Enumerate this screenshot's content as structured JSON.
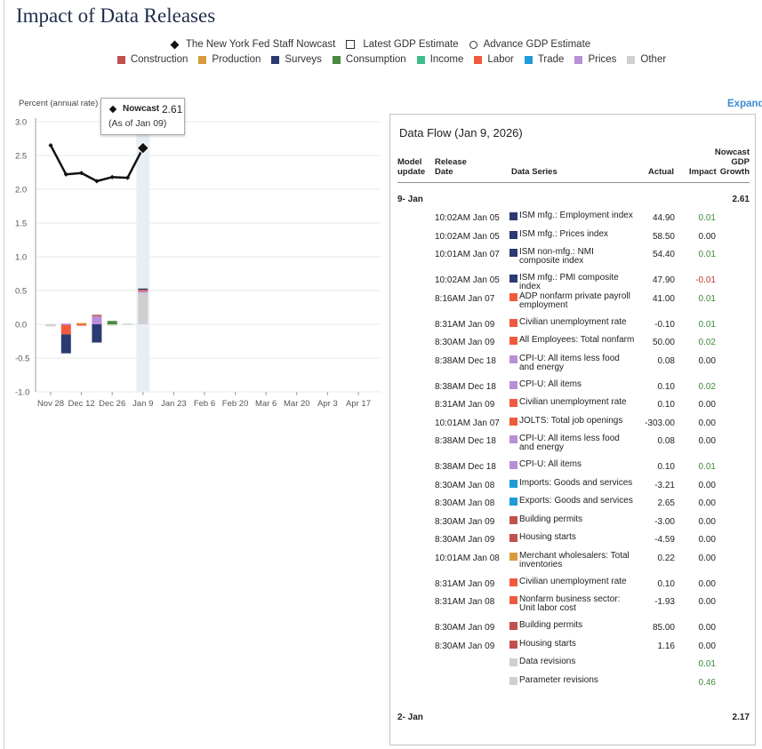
{
  "title": "Impact of Data Releases",
  "legend": {
    "markers": [
      {
        "name": "The New York Fed Staff Nowcast",
        "shape": "diamond"
      },
      {
        "name": "Latest GDP Estimate",
        "shape": "square"
      },
      {
        "name": "Advance GDP Estimate",
        "shape": "circle"
      }
    ],
    "categories": [
      {
        "name": "Construction",
        "color": "#c0504d"
      },
      {
        "name": "Production",
        "color": "#d99a3c"
      },
      {
        "name": "Surveys",
        "color": "#2b3a73"
      },
      {
        "name": "Consumption",
        "color": "#4a8a3e"
      },
      {
        "name": "Income",
        "color": "#3dbf8a"
      },
      {
        "name": "Labor",
        "color": "#f05a3c"
      },
      {
        "name": "Trade",
        "color": "#1f9bd7"
      },
      {
        "name": "Prices",
        "color": "#b88ed6"
      },
      {
        "name": "Other",
        "color": "#cfcfcf"
      }
    ]
  },
  "expand_label": "Expand",
  "tooltip": {
    "name": "Nowcast",
    "value": "2.61",
    "as_of": "(As of Jan 09)"
  },
  "chart_data": {
    "type": "line",
    "ylabel": "Percent (annual rate)",
    "ylim": [
      -1.0,
      3.0
    ],
    "yticks": [
      "3.0",
      "2.5",
      "2.0",
      "1.5",
      "1.0",
      "0.5",
      "0.0",
      "-0.5",
      "-1.0"
    ],
    "ytick_values": [
      3.0,
      2.5,
      2.0,
      1.5,
      1.0,
      0.5,
      0.0,
      -0.5,
      -1.0
    ],
    "xtick_labels": [
      "Nov 28",
      "Dec 12",
      "Dec 26",
      "Jan 9",
      "Jan 23",
      "Feb 6",
      "Feb 20",
      "Mar 6",
      "Mar 20",
      "Apr 3",
      "Apr 17"
    ],
    "grid": true,
    "highlighted_week": 6,
    "nowcast": {
      "name": "The New York Fed Staff Nowcast",
      "weeks": [
        0,
        1,
        2,
        3,
        4,
        5,
        6
      ],
      "values": [
        2.65,
        2.22,
        2.24,
        2.12,
        2.18,
        2.17,
        2.61
      ]
    },
    "impact_bars": [
      {
        "week": 0,
        "segments": [
          {
            "category": "Other",
            "value": -0.03
          }
        ]
      },
      {
        "week": 1,
        "segments": [
          {
            "category": "Labor",
            "value": -0.15
          },
          {
            "category": "Surveys",
            "value": -0.28
          },
          {
            "category": "Prices",
            "value": 0.01
          }
        ]
      },
      {
        "week": 2,
        "segments": [
          {
            "category": "Production",
            "value": 0.02
          },
          {
            "category": "Labor",
            "value": -0.02
          }
        ]
      },
      {
        "week": 3,
        "segments": [
          {
            "category": "Prices",
            "value": 0.12
          },
          {
            "category": "Construction",
            "value": 0.02
          },
          {
            "category": "Surveys",
            "value": -0.27
          }
        ]
      },
      {
        "week": 4,
        "segments": [
          {
            "category": "Consumption",
            "value": 0.05
          },
          {
            "category": "Other",
            "value": -0.02
          }
        ]
      },
      {
        "week": 5,
        "segments": [
          {
            "category": "Other",
            "value": 0.0
          }
        ]
      },
      {
        "week": 6,
        "segments": [
          {
            "category": "Other",
            "value": 0.47
          },
          {
            "category": "Prices",
            "value": 0.02
          },
          {
            "category": "Labor",
            "value": 0.02
          },
          {
            "category": "Surveys",
            "value": 0.02
          }
        ]
      }
    ]
  },
  "panel": {
    "title": "Data Flow (Jan 9, 2026)",
    "headers": {
      "model_update": [
        "Model",
        "update"
      ],
      "release_date": [
        "Release",
        "Date"
      ],
      "series": "Data Series",
      "actual": "Actual",
      "impact": "Impact",
      "nowcast": [
        "Nowcast",
        "GDP",
        "Growth"
      ]
    },
    "groups": [
      {
        "label": "9- Jan",
        "nowcast": "2.61"
      },
      {
        "label": "2- Jan",
        "nowcast": "2.17"
      }
    ],
    "rows": [
      {
        "date": "10:02AM Jan 05",
        "category": "Surveys",
        "series": "ISM mfg.: Employment index",
        "actual": "44.90",
        "impact": "0.01"
      },
      {
        "date": "10:02AM Jan 05",
        "category": "Surveys",
        "series": "ISM mfg.: Prices index",
        "actual": "58.50",
        "impact": "0.00"
      },
      {
        "date": "10:01AM Jan 07",
        "category": "Surveys",
        "series": "ISM non-mfg.: NMI composite index",
        "actual": "54.40",
        "impact": "0.01"
      },
      {
        "date": "10:02AM Jan 05",
        "category": "Surveys",
        "series": "ISM mfg.: PMI composite index",
        "actual": "47.90",
        "impact": "-0.01"
      },
      {
        "date": "8:16AM Jan 07",
        "category": "Labor",
        "series": "ADP nonfarm private payroll employment",
        "actual": "41.00",
        "impact": "0.01"
      },
      {
        "date": "8:31AM Jan 09",
        "category": "Labor",
        "series": "Civilian unemployment rate",
        "actual": "-0.10",
        "impact": "0.01"
      },
      {
        "date": "8:30AM Jan 09",
        "category": "Labor",
        "series": "All Employees: Total nonfarm",
        "actual": "50.00",
        "impact": "0.02"
      },
      {
        "date": "8:38AM Dec 18",
        "category": "Prices",
        "series": "CPI-U: All items less food and energy",
        "actual": "0.08",
        "impact": "0.00"
      },
      {
        "date": "8:38AM Dec 18",
        "category": "Prices",
        "series": "CPI-U: All items",
        "actual": "0.10",
        "impact": "0.02"
      },
      {
        "date": "8:31AM Jan 09",
        "category": "Labor",
        "series": "Civilian unemployment rate",
        "actual": "0.10",
        "impact": "0.00"
      },
      {
        "date": "10:01AM Jan 07",
        "category": "Labor",
        "series": "JOLTS: Total job openings",
        "actual": "-303.00",
        "impact": "0.00"
      },
      {
        "date": "8:38AM Dec 18",
        "category": "Prices",
        "series": "CPI-U: All items less food and energy",
        "actual": "0.08",
        "impact": "0.00"
      },
      {
        "date": "8:38AM Dec 18",
        "category": "Prices",
        "series": "CPI-U: All items",
        "actual": "0.10",
        "impact": "0.01"
      },
      {
        "date": "8:30AM Jan 08",
        "category": "Trade",
        "series": "Imports: Goods and services",
        "actual": "-3.21",
        "impact": "0.00"
      },
      {
        "date": "8:30AM Jan 08",
        "category": "Trade",
        "series": "Exports: Goods and services",
        "actual": "2.65",
        "impact": "0.00"
      },
      {
        "date": "8:30AM Jan 09",
        "category": "Construction",
        "series": "Building permits",
        "actual": "-3.00",
        "impact": "0.00"
      },
      {
        "date": "8:30AM Jan 09",
        "category": "Construction",
        "series": "Housing starts",
        "actual": "-4.59",
        "impact": "0.00"
      },
      {
        "date": "10:01AM Jan 08",
        "category": "Production",
        "series": "Merchant wholesalers: Total inventories",
        "actual": "0.22",
        "impact": "0.00"
      },
      {
        "date": "8:31AM Jan 09",
        "category": "Labor",
        "series": "Civilian unemployment rate",
        "actual": "0.10",
        "impact": "0.00"
      },
      {
        "date": "8:31AM Jan 08",
        "category": "Labor",
        "series": "Nonfarm business sector: Unit labor cost",
        "actual": "-1.93",
        "impact": "0.00"
      },
      {
        "date": "8:30AM Jan 09",
        "category": "Construction",
        "series": "Building permits",
        "actual": "85.00",
        "impact": "0.00"
      },
      {
        "date": "8:30AM Jan 09",
        "category": "Construction",
        "series": "Housing starts",
        "actual": "1.16",
        "impact": "0.00"
      },
      {
        "date": "",
        "category": "Other",
        "series": "Data revisions",
        "actual": "",
        "impact": "0.01"
      },
      {
        "date": "",
        "category": "Other",
        "series": "Parameter revisions",
        "actual": "",
        "impact": "0.46"
      }
    ],
    "colors": {
      "positive": "#3c8a3c",
      "negative": "#c0392b",
      "neutral": "#222222"
    }
  }
}
